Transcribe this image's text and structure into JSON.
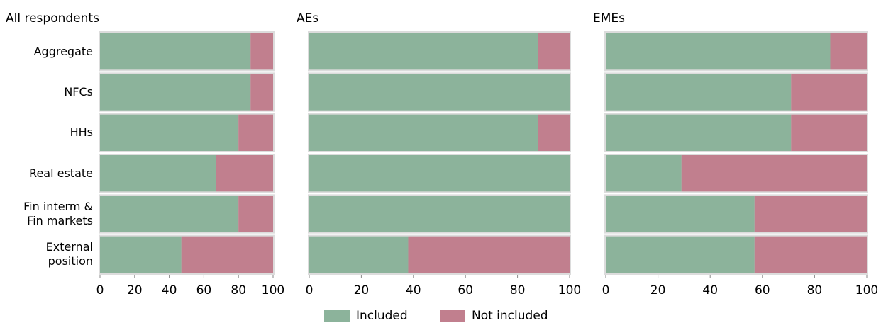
{
  "chart_data": {
    "type": "bar",
    "orientation": "horizontal",
    "stacked": true,
    "categories": [
      "Aggregate",
      "NFCs",
      "HHs",
      "Real estate",
      "Fin interm & Fin markets",
      "External position"
    ],
    "series": [
      {
        "name": "Included",
        "color": "#8cb39b"
      },
      {
        "name": "Not included",
        "color": "#c17f8e"
      }
    ],
    "xlim": [
      0,
      100
    ],
    "xticks": [
      0,
      20,
      40,
      60,
      80,
      100
    ],
    "panels": [
      {
        "title": "All respondents",
        "values": [
          [
            87,
            87,
            80,
            67,
            80,
            47
          ],
          [
            13,
            13,
            20,
            33,
            20,
            53
          ]
        ]
      },
      {
        "title": "AEs",
        "values": [
          [
            88,
            100,
            88,
            100,
            100,
            38
          ],
          [
            12,
            0,
            12,
            0,
            0,
            62
          ]
        ]
      },
      {
        "title": "EMEs",
        "values": [
          [
            86,
            71,
            71,
            29,
            57,
            57
          ],
          [
            14,
            29,
            29,
            71,
            43,
            43
          ]
        ]
      }
    ]
  }
}
